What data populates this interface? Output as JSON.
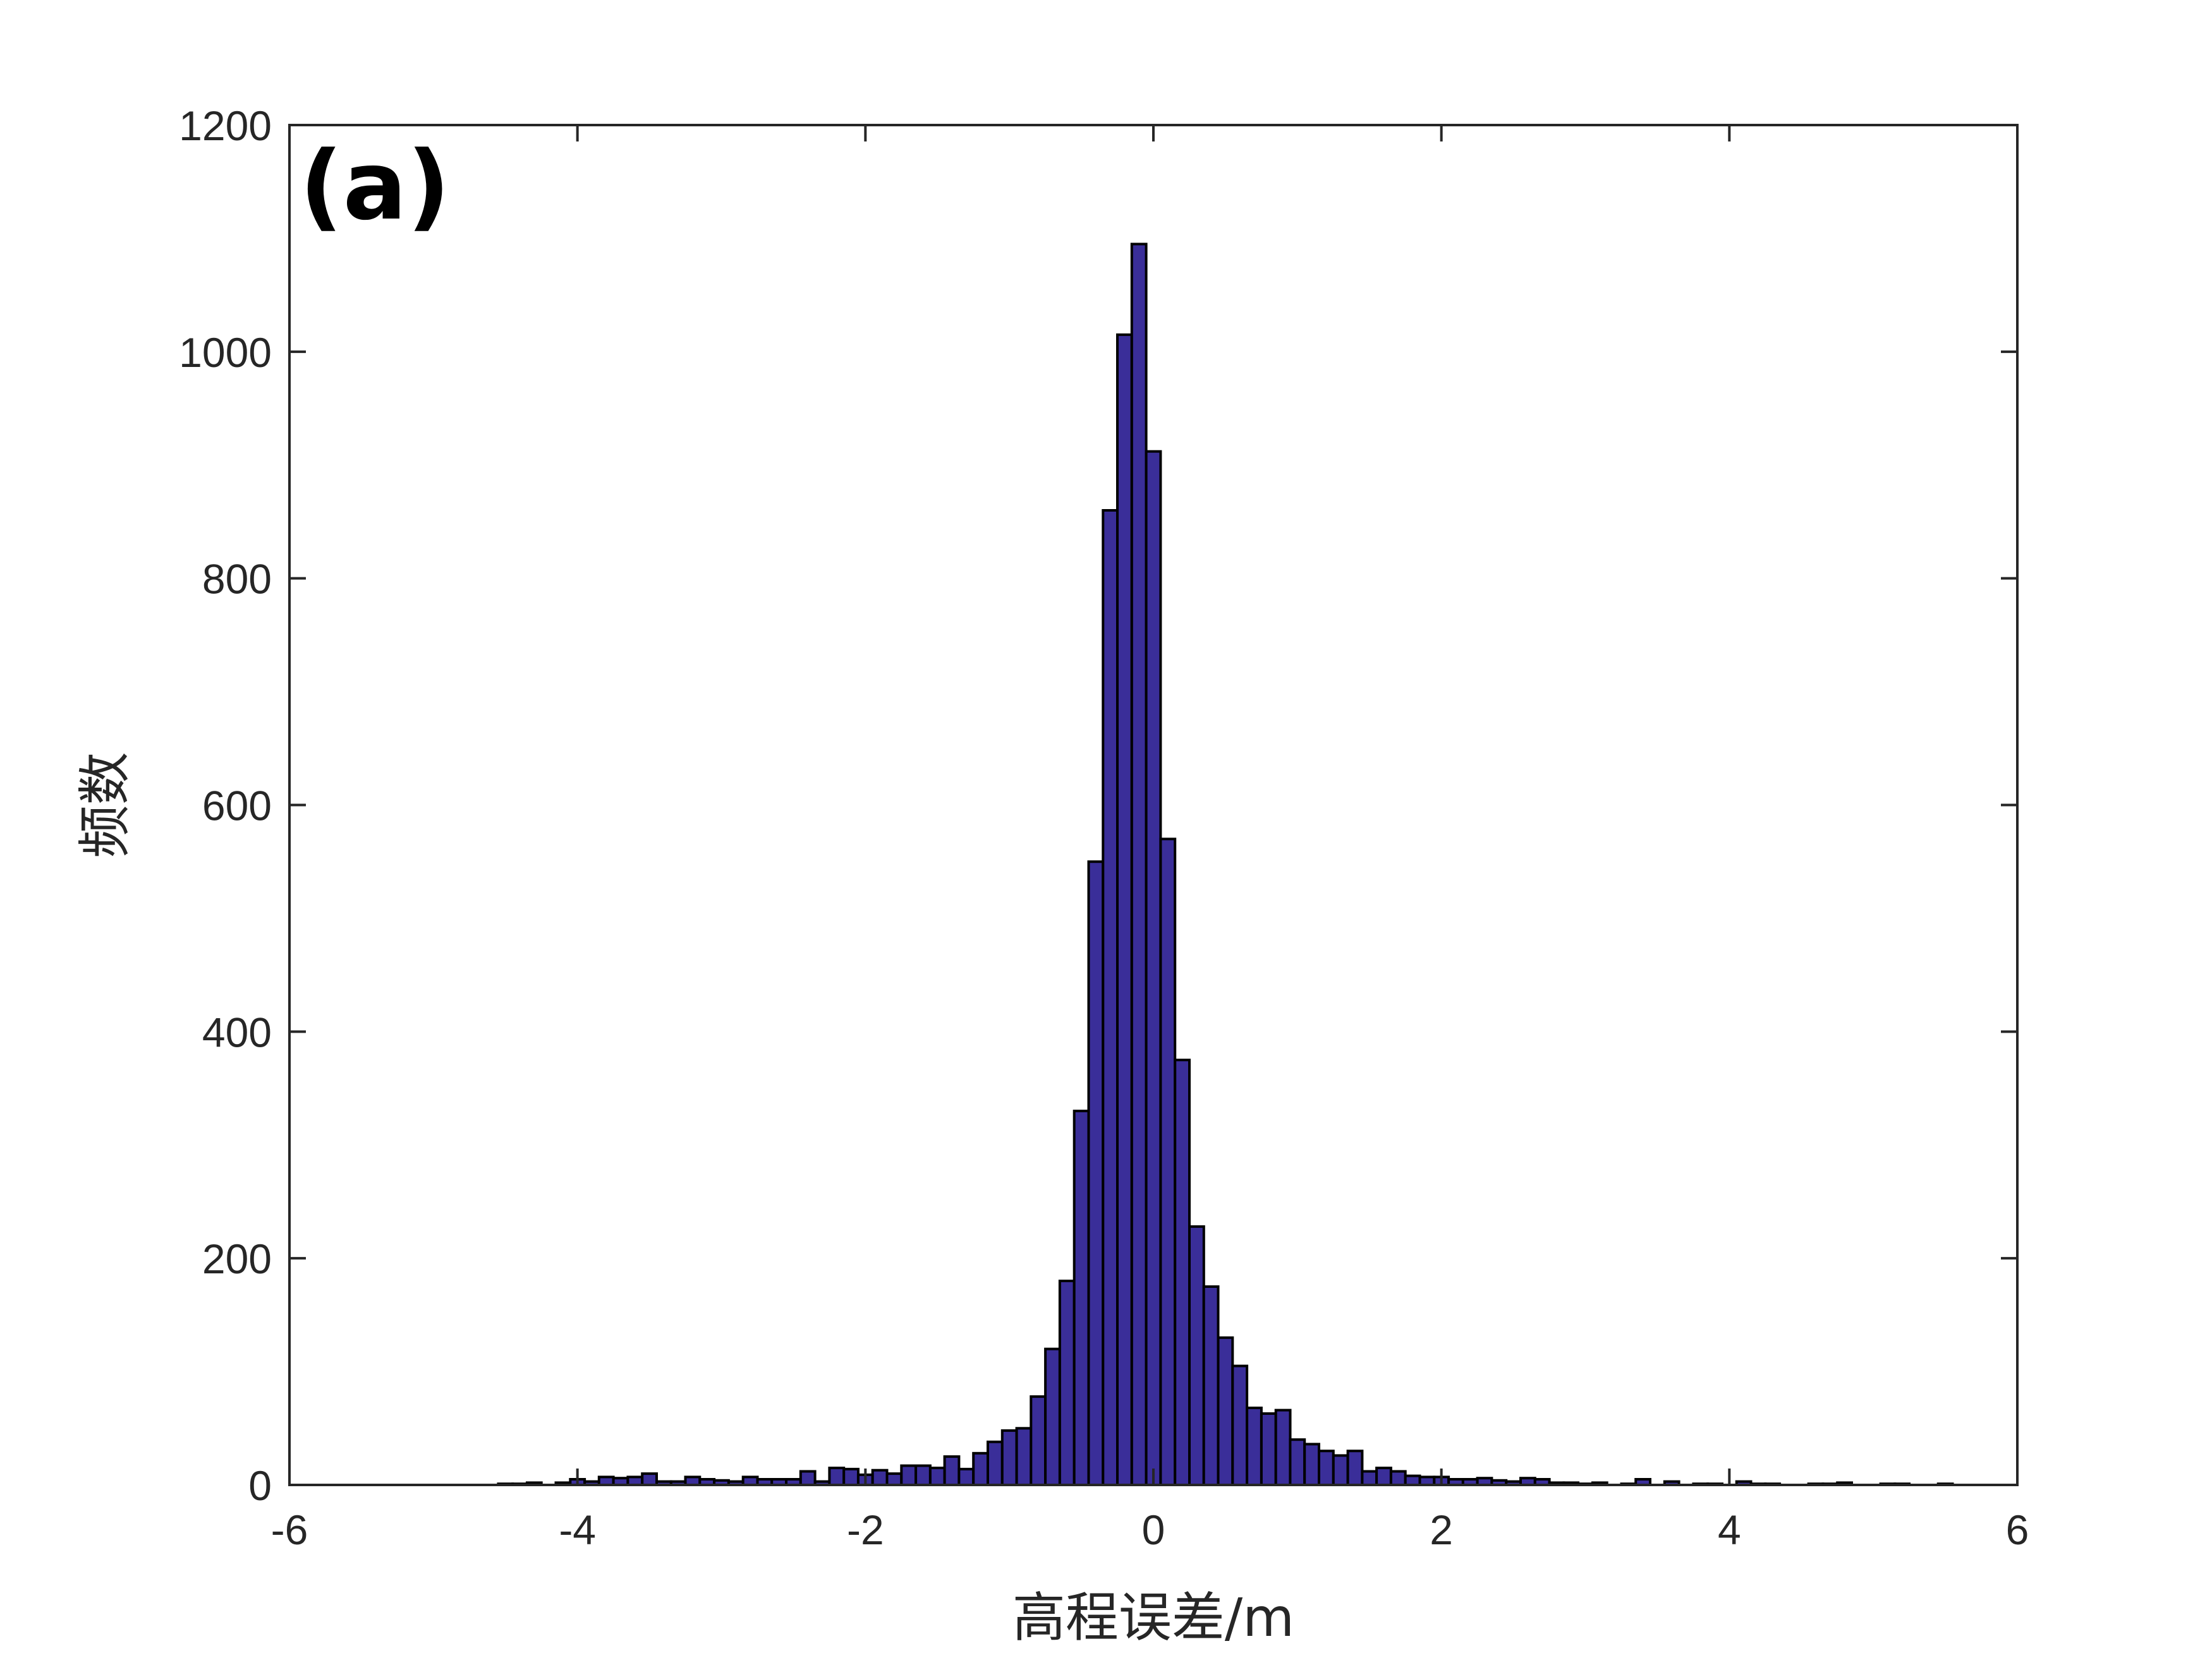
{
  "chart_data": {
    "type": "bar",
    "panel_label": "(a)",
    "xlabel": "高程误差/m",
    "ylabel": "频数",
    "xlim": [
      -6,
      6
    ],
    "ylim": [
      0,
      1200
    ],
    "xticks": [
      -6,
      -4,
      -2,
      0,
      2,
      4,
      6
    ],
    "yticks": [
      0,
      200,
      400,
      600,
      800,
      1000,
      1200
    ],
    "grid": false,
    "legend": "none",
    "bar_color": "#3a2e99",
    "edge_color": "#000000",
    "bin_width": 0.1,
    "x": [
      -4.5,
      -4.4,
      -4.3,
      -4.2,
      -4.1,
      -4.0,
      -3.9,
      -3.8,
      -3.7,
      -3.6,
      -3.5,
      -3.4,
      -3.3,
      -3.2,
      -3.1,
      -3.0,
      -2.9,
      -2.8,
      -2.7,
      -2.6,
      -2.5,
      -2.4,
      -2.3,
      -2.2,
      -2.1,
      -2.0,
      -1.9,
      -1.8,
      -1.7,
      -1.6,
      -1.5,
      -1.4,
      -1.3,
      -1.2,
      -1.1,
      -1.0,
      -0.9,
      -0.8,
      -0.7,
      -0.6,
      -0.5,
      -0.4,
      -0.3,
      -0.2,
      -0.1,
      0.0,
      0.1,
      0.2,
      0.3,
      0.4,
      0.5,
      0.6,
      0.7,
      0.8,
      0.9,
      1.0,
      1.1,
      1.2,
      1.3,
      1.4,
      1.5,
      1.6,
      1.7,
      1.8,
      1.9,
      2.0,
      2.1,
      2.2,
      2.3,
      2.4,
      2.5,
      2.6,
      2.7,
      2.8,
      2.9,
      3.0,
      3.1,
      3.2,
      3.3,
      3.4,
      3.5,
      3.6,
      3.7,
      3.8,
      3.9,
      4.0,
      4.1,
      4.2,
      4.3,
      4.4,
      4.5,
      4.6,
      4.7,
      4.8,
      4.9,
      5.0,
      5.1,
      5.2,
      5.3,
      5.4,
      5.5
    ],
    "values": [
      1,
      1,
      2,
      0,
      2,
      5,
      3,
      7,
      6,
      7,
      10,
      3,
      3,
      7,
      5,
      4,
      3,
      7,
      5,
      5,
      5,
      12,
      3,
      15,
      14,
      9,
      13,
      10,
      17,
      17,
      15,
      25,
      14,
      28,
      38,
      48,
      50,
      78,
      120,
      180,
      330,
      550,
      860,
      1015,
      1095,
      912,
      570,
      375,
      228,
      175,
      130,
      105,
      68,
      63,
      66,
      40,
      36,
      30,
      26,
      30,
      12,
      15,
      12,
      8,
      7,
      7,
      5,
      5,
      6,
      4,
      3,
      6,
      5,
      2,
      2,
      1,
      2,
      0,
      1,
      5,
      0,
      3,
      0,
      1,
      1,
      0,
      3,
      1,
      1,
      0,
      0,
      1,
      1,
      2,
      0,
      0,
      1,
      1,
      0,
      0,
      1
    ]
  }
}
